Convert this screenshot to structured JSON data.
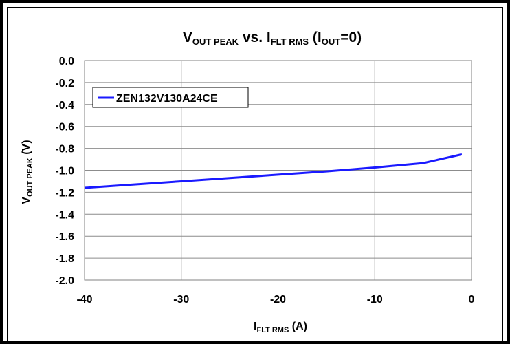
{
  "chart_data": {
    "type": "line",
    "title": {
      "v": "V",
      "out_peak": "OUT PEAK",
      "vs": " vs. ",
      "i": "I",
      "flt_rms": "FLT RMS",
      "paren_i": " (I",
      "out": "OUT",
      "eq0": "=0)"
    },
    "xlabel": {
      "i": "I",
      "flt_rms": "FLT RMS",
      "unit": " (A)"
    },
    "ylabel": {
      "v": "V",
      "out_peak": "OUT PEAK",
      "unit": " (V)"
    },
    "xlim": [
      -40,
      0
    ],
    "ylim": [
      -2.0,
      0.0
    ],
    "x_ticks": [
      "-40",
      "-30",
      "-20",
      "-10",
      "0"
    ],
    "y_ticks": [
      "0.0",
      "-0.2",
      "-0.4",
      "-0.6",
      "-0.8",
      "-1.0",
      "-1.2",
      "-1.4",
      "-1.6",
      "-1.8",
      "-2.0"
    ],
    "grid": true,
    "legend_position": "top-left",
    "series": [
      {
        "name": "ZEN132V130A24CE",
        "color": "#1a1aff",
        "x": [
          -40,
          -35,
          -30,
          -25,
          -20,
          -15,
          -10,
          -5,
          -1
        ],
        "y": [
          -1.16,
          -1.13,
          -1.1,
          -1.07,
          -1.04,
          -1.01,
          -0.975,
          -0.935,
          -0.855
        ]
      }
    ]
  }
}
